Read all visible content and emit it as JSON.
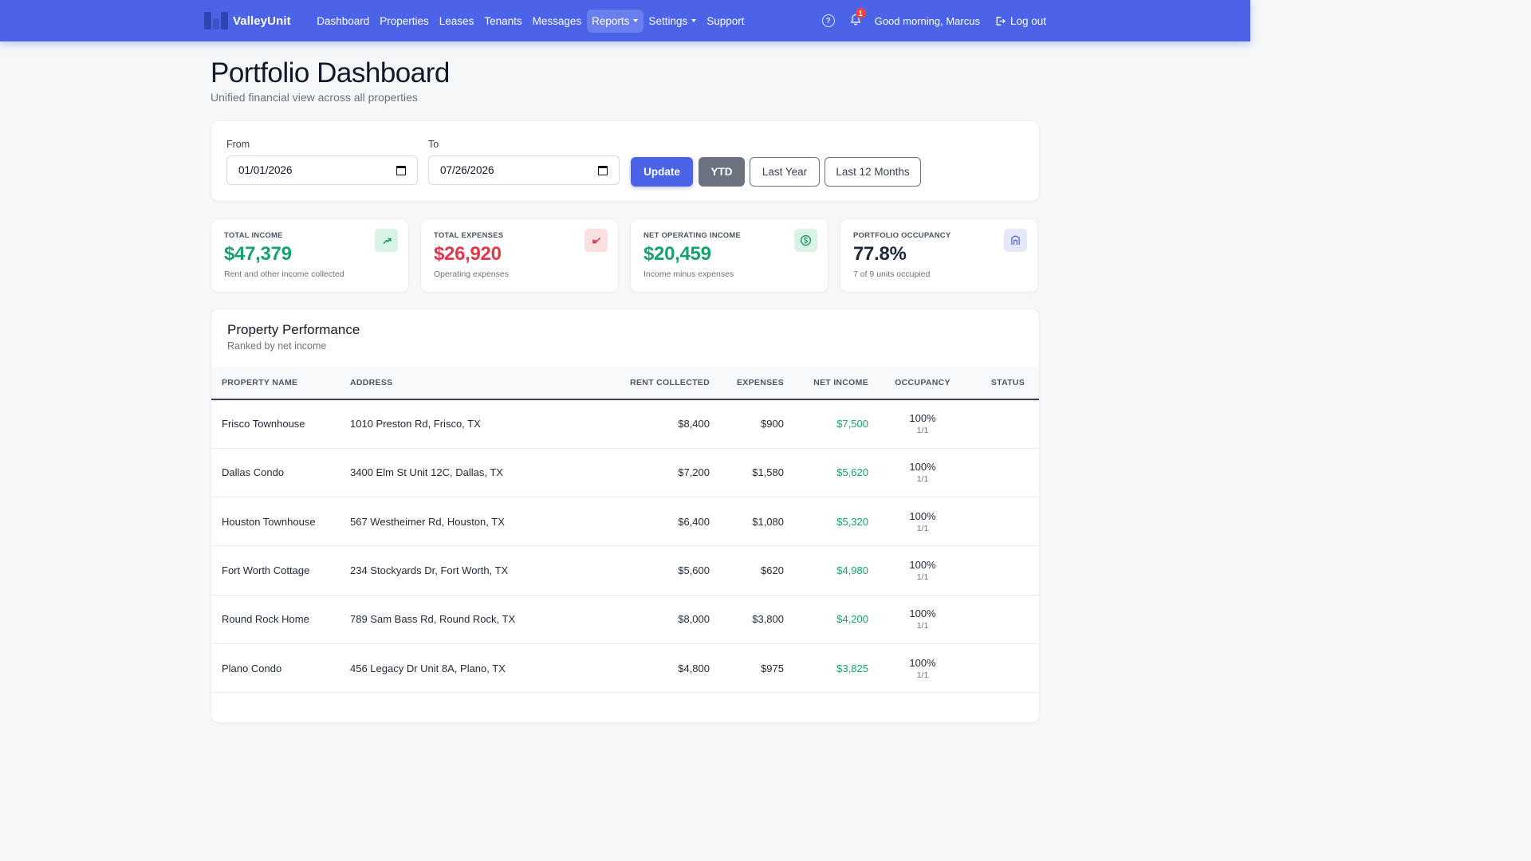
{
  "brand": {
    "name": "ValleyUnit"
  },
  "nav": {
    "links": [
      {
        "label": "Dashboard"
      },
      {
        "label": "Properties"
      },
      {
        "label": "Leases"
      },
      {
        "label": "Tenants"
      },
      {
        "label": "Messages"
      },
      {
        "label": "Reports",
        "dropdown": true,
        "active": true
      },
      {
        "label": "Settings",
        "dropdown": true
      },
      {
        "label": "Support"
      }
    ],
    "help_icon_text": "?",
    "notification_count": "1",
    "greeting": "Good morning, Marcus",
    "logout_label": "Log out"
  },
  "page": {
    "title": "Portfolio Dashboard",
    "subtitle": "Unified financial view across all properties"
  },
  "filters": {
    "from_label": "From",
    "from_value": "01/01/2026",
    "to_label": "To",
    "to_value": "07/26/2026",
    "update_label": "Update",
    "ytd_label": "YTD",
    "last_year_label": "Last Year",
    "last_12_label": "Last 12 Months"
  },
  "stats": {
    "income": {
      "label": "TOTAL INCOME",
      "value": "$47,379",
      "desc": "Rent and other income collected",
      "icon": "trending-up-icon"
    },
    "expenses": {
      "label": "TOTAL EXPENSES",
      "value": "$26,920",
      "desc": "Operating expenses",
      "icon": "trending-down-icon"
    },
    "noi": {
      "label": "NET OPERATING INCOME",
      "value": "$20,459",
      "desc": "Income minus expenses",
      "icon": "dollar-circle-icon"
    },
    "occupancy": {
      "label": "PORTFOLIO OCCUPANCY",
      "value": "77.8%",
      "desc": "7 of 9 units occupied",
      "icon": "building-icon"
    }
  },
  "performance": {
    "title": "Property Performance",
    "subtitle": "Ranked by net income",
    "columns": {
      "name": "PROPERTY NAME",
      "address": "ADDRESS",
      "rent": "RENT COLLECTED",
      "expenses": "EXPENSES",
      "net": "NET INCOME",
      "occupancy": "OCCUPANCY",
      "status": "STATUS"
    },
    "rows": [
      {
        "name": "Frisco Townhouse",
        "address": "1010 Preston Rd, Frisco, TX",
        "rent": "$8,400",
        "expenses": "$900",
        "net": "$7,500",
        "occupancy": "100%",
        "units": "1/1"
      },
      {
        "name": "Dallas Condo",
        "address": "3400 Elm St Unit 12C, Dallas, TX",
        "rent": "$7,200",
        "expenses": "$1,580",
        "net": "$5,620",
        "occupancy": "100%",
        "units": "1/1"
      },
      {
        "name": "Houston Townhouse",
        "address": "567 Westheimer Rd, Houston, TX",
        "rent": "$6,400",
        "expenses": "$1,080",
        "net": "$5,320",
        "occupancy": "100%",
        "units": "1/1"
      },
      {
        "name": "Fort Worth Cottage",
        "address": "234 Stockyards Dr, Fort Worth, TX",
        "rent": "$5,600",
        "expenses": "$620",
        "net": "$4,980",
        "occupancy": "100%",
        "units": "1/1"
      },
      {
        "name": "Round Rock Home",
        "address": "789 Sam Bass Rd, Round Rock, TX",
        "rent": "$8,000",
        "expenses": "$3,800",
        "net": "$4,200",
        "occupancy": "100%",
        "units": "1/1"
      },
      {
        "name": "Plano Condo",
        "address": "456 Legacy Dr Unit 8A, Plano, TX",
        "rent": "$4,800",
        "expenses": "$975",
        "net": "$3,825",
        "occupancy": "100%",
        "units": "1/1"
      }
    ]
  },
  "colors": {
    "primary": "#4a63e7",
    "positive": "#16a36a",
    "negative": "#e0384a",
    "badge": "#ef4444"
  }
}
